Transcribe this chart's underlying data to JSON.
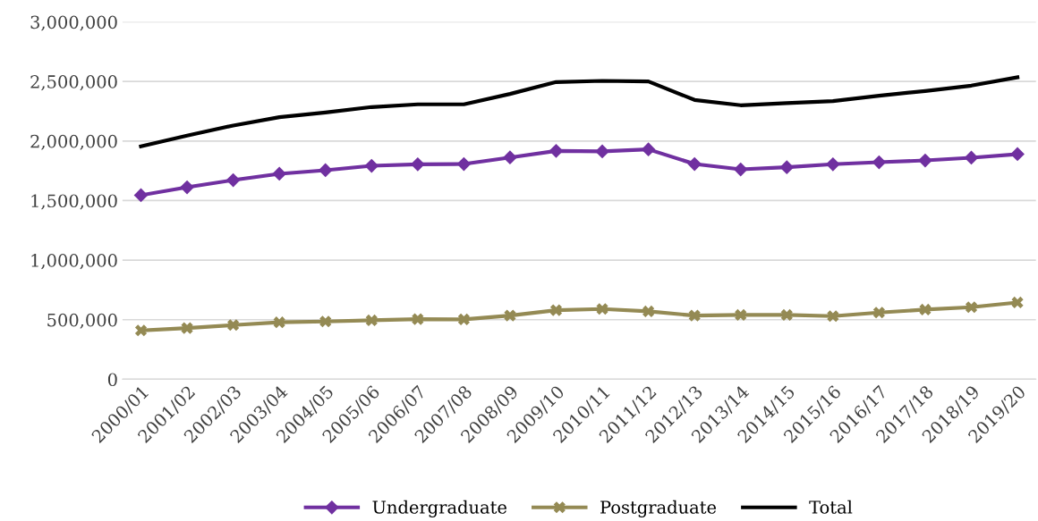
{
  "chart_data": {
    "type": "line",
    "categories": [
      "2000/01",
      "2001/02",
      "2002/03",
      "2003/04",
      "2004/05",
      "2005/06",
      "2006/07",
      "2007/08",
      "2008/09",
      "2009/10",
      "2010/11",
      "2011/12",
      "2012/13",
      "2013/14",
      "2014/15",
      "2015/16",
      "2016/17",
      "2017/18",
      "2018/19",
      "2019/20"
    ],
    "series": [
      {
        "name": "Undergraduate",
        "color": "#7030a0",
        "marker": "diamond",
        "values": [
          1545000,
          1612000,
          1672000,
          1725000,
          1755000,
          1792000,
          1805000,
          1807000,
          1862000,
          1917000,
          1913000,
          1930000,
          1807000,
          1762000,
          1780000,
          1805000,
          1822000,
          1837000,
          1860000,
          1890000
        ]
      },
      {
        "name": "Postgraduate",
        "color": "#948a54",
        "marker": "cross",
        "values": [
          410000,
          430000,
          455000,
          478000,
          485000,
          495000,
          505000,
          503000,
          535000,
          580000,
          590000,
          570000,
          535000,
          540000,
          540000,
          530000,
          560000,
          585000,
          605000,
          645000
        ]
      },
      {
        "name": "Total",
        "color": "#000000",
        "marker": "none",
        "values": [
          1955000,
          2045000,
          2130000,
          2200000,
          2240000,
          2285000,
          2308000,
          2308000,
          2395000,
          2495000,
          2505000,
          2500000,
          2345000,
          2300000,
          2318000,
          2335000,
          2380000,
          2420000,
          2465000,
          2535000
        ]
      }
    ],
    "ylim": [
      0,
      3000000
    ],
    "yticks": [
      {
        "value": 0,
        "label": "0"
      },
      {
        "value": 500000,
        "label": "500,000"
      },
      {
        "value": 1000000,
        "label": "1,000,000"
      },
      {
        "value": 1500000,
        "label": "1,500,000"
      },
      {
        "value": 2000000,
        "label": "2,000,000"
      },
      {
        "value": 2500000,
        "label": "2,500,000"
      },
      {
        "value": 3000000,
        "label": "3,000,000"
      }
    ],
    "grid": "y",
    "legend": "bottom",
    "line_style": "solid"
  }
}
